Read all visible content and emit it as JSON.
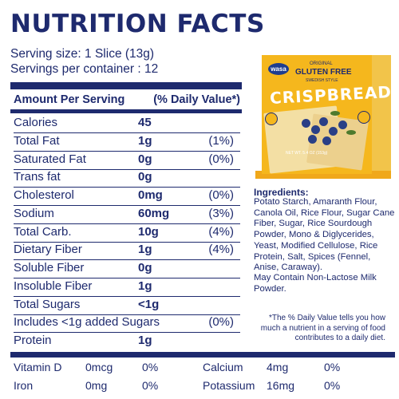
{
  "title": "NUTRITION FACTS",
  "serving_size": "Serving size: 1 Slice (13g)",
  "servings_per_container": "Servings per container : 12",
  "table": {
    "header": {
      "name": "Amount Per Serving",
      "dv": "(% Daily Value*)"
    },
    "rows": [
      {
        "name": "Calories",
        "amount": "45",
        "dv": ""
      },
      {
        "name": "Total Fat",
        "amount": "1g",
        "dv": "(1%)"
      },
      {
        "name": "Saturated Fat",
        "amount": "0g",
        "dv": "(0%)"
      },
      {
        "name": "Trans fat",
        "amount": "0g",
        "dv": ""
      },
      {
        "name": "Cholesterol",
        "amount": "0mg",
        "dv": "(0%)"
      },
      {
        "name": "Sodium",
        "amount": "60mg",
        "dv": "(3%)"
      },
      {
        "name": "Total Carb.",
        "amount": "10g",
        "dv": "(4%)"
      },
      {
        "name": "Dietary Fiber",
        "amount": "1g",
        "dv": "(4%)"
      },
      {
        "name": "Soluble Fiber",
        "amount": "0g",
        "dv": ""
      },
      {
        "name": "Insoluble Fiber",
        "amount": "1g",
        "dv": ""
      },
      {
        "name": "Total Sugars",
        "amount": "<1g",
        "dv": ""
      },
      {
        "name": "Includes <1g added Sugars",
        "amount": "",
        "dv": "(0%)"
      },
      {
        "name": "Protein",
        "amount": "1g",
        "dv": ""
      }
    ]
  },
  "vitamins": [
    {
      "name": "Vitamin D",
      "amount": "0mcg",
      "dv": "0%"
    },
    {
      "name": "Iron",
      "amount": "0mg",
      "dv": "0%"
    },
    {
      "name": "Calcium",
      "amount": "4mg",
      "dv": "0%"
    },
    {
      "name": "Potassium",
      "amount": "16mg",
      "dv": "0%"
    }
  ],
  "package": {
    "brand": "wasa",
    "original": "ORIGINAL",
    "gluten_free": "GLUTEN FREE",
    "style": "SWEDISH STYLE",
    "name": "CRISPBREAD",
    "weight": "NET WT. 5.4 OZ (153g)"
  },
  "ingredients": {
    "heading": "Ingredients:",
    "text": "Potato Starch, Amaranth Flour, Canola Oil, Rice Flour, Sugar Cane Fiber, Sugar, Rice Sourdough Powder, Mono & Diglycerides, Yeast, Modified Cellulose, Rice Protein, Salt, Spices (Fennel, Anise, Caraway).",
    "may_contain": "May Contain Non-Lactose Milk Powder."
  },
  "footnote": "*The % Daily Value tells you how much a nutrient in a serving of food contributes to a daily diet.",
  "colors": {
    "text": "#1e2a6e",
    "package_yellow": "#f5b71d",
    "package_blue": "#1e3d8f"
  }
}
